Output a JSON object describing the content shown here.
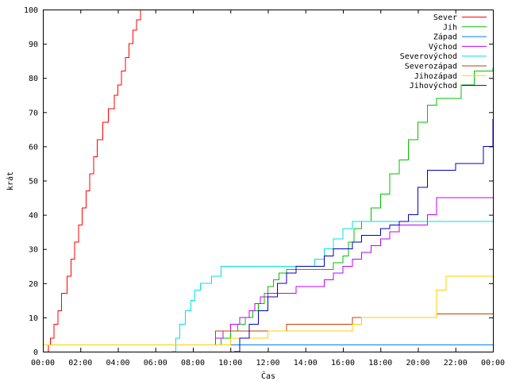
{
  "chart_data": {
    "type": "line",
    "title": "",
    "xlabel": "Čas",
    "ylabel": "krát",
    "xlim": [
      0,
      24
    ],
    "ylim": [
      0,
      100
    ],
    "xticks": [
      {
        "value": 0,
        "label": "00:00"
      },
      {
        "value": 2,
        "label": "02:00"
      },
      {
        "value": 4,
        "label": "04:00"
      },
      {
        "value": 6,
        "label": "06:00"
      },
      {
        "value": 8,
        "label": "08:00"
      },
      {
        "value": 10,
        "label": "10:00"
      },
      {
        "value": 12,
        "label": "12:00"
      },
      {
        "value": 14,
        "label": "14:00"
      },
      {
        "value": 16,
        "label": "16:00"
      },
      {
        "value": 18,
        "label": "18:00"
      },
      {
        "value": 20,
        "label": "20:00"
      },
      {
        "value": 22,
        "label": "22:00"
      },
      {
        "value": 24,
        "label": "00:00"
      }
    ],
    "yticks": [
      {
        "value": 0,
        "label": "0"
      },
      {
        "value": 10,
        "label": "10"
      },
      {
        "value": 20,
        "label": "20"
      },
      {
        "value": 30,
        "label": "30"
      },
      {
        "value": 40,
        "label": "40"
      },
      {
        "value": 50,
        "label": "50"
      },
      {
        "value": 60,
        "label": "60"
      },
      {
        "value": 70,
        "label": "70"
      },
      {
        "value": 80,
        "label": "80"
      },
      {
        "value": 90,
        "label": "90"
      },
      {
        "value": 100,
        "label": "100"
      }
    ],
    "grid": false,
    "legend_position": "top-right",
    "series": [
      {
        "name": "Sever",
        "color": "#ff0000",
        "points": [
          [
            0.25,
            0
          ],
          [
            0.3,
            2
          ],
          [
            0.4,
            4
          ],
          [
            0.6,
            8
          ],
          [
            0.8,
            12
          ],
          [
            1.0,
            17
          ],
          [
            1.3,
            22
          ],
          [
            1.5,
            27
          ],
          [
            1.7,
            32
          ],
          [
            1.9,
            37
          ],
          [
            2.1,
            42
          ],
          [
            2.3,
            47
          ],
          [
            2.5,
            52
          ],
          [
            2.7,
            57
          ],
          [
            2.9,
            62
          ],
          [
            3.2,
            67
          ],
          [
            3.5,
            71
          ],
          [
            3.8,
            75
          ],
          [
            4.0,
            78
          ],
          [
            4.2,
            82
          ],
          [
            4.4,
            86
          ],
          [
            4.6,
            90
          ],
          [
            4.8,
            94
          ],
          [
            5.0,
            97
          ],
          [
            5.2,
            100
          ]
        ]
      },
      {
        "name": "Jih",
        "color": "#00c000",
        "points": [
          [
            0,
            2
          ],
          [
            9.2,
            2
          ],
          [
            9.5,
            4
          ],
          [
            10.0,
            6
          ],
          [
            10.4,
            8
          ],
          [
            10.8,
            10
          ],
          [
            11.2,
            12
          ],
          [
            11.5,
            14
          ],
          [
            11.8,
            17
          ],
          [
            12.0,
            19
          ],
          [
            12.3,
            21
          ],
          [
            12.6,
            23
          ],
          [
            13.0,
            24
          ],
          [
            15.0,
            24
          ],
          [
            15.5,
            26
          ],
          [
            16.0,
            28
          ],
          [
            16.3,
            32
          ],
          [
            16.6,
            36
          ],
          [
            17.0,
            38
          ],
          [
            17.5,
            42
          ],
          [
            18.0,
            46
          ],
          [
            18.5,
            52
          ],
          [
            19.0,
            56
          ],
          [
            19.5,
            62
          ],
          [
            20.0,
            67
          ],
          [
            20.5,
            72
          ],
          [
            21.0,
            74
          ],
          [
            22.0,
            74
          ],
          [
            22.3,
            78
          ],
          [
            23.0,
            82
          ],
          [
            24.0,
            83
          ]
        ]
      },
      {
        "name": "Západ",
        "color": "#0080ff",
        "points": [
          [
            0,
            2
          ],
          [
            24,
            2
          ]
        ]
      },
      {
        "name": "Východ",
        "color": "#c000ff",
        "points": [
          [
            0,
            2
          ],
          [
            8.8,
            2
          ],
          [
            9.2,
            4
          ],
          [
            9.6,
            6
          ],
          [
            10.0,
            8
          ],
          [
            10.5,
            10
          ],
          [
            11.0,
            12
          ],
          [
            11.3,
            14
          ],
          [
            11.6,
            16
          ],
          [
            12.0,
            17
          ],
          [
            13.0,
            17
          ],
          [
            13.5,
            19
          ],
          [
            14.0,
            19
          ],
          [
            15.0,
            21
          ],
          [
            15.5,
            23
          ],
          [
            16.0,
            25
          ],
          [
            16.5,
            27
          ],
          [
            17.0,
            29
          ],
          [
            17.5,
            31
          ],
          [
            18.0,
            33
          ],
          [
            18.5,
            35
          ],
          [
            19.0,
            37
          ],
          [
            20.0,
            37
          ],
          [
            20.5,
            40
          ],
          [
            21.0,
            45
          ],
          [
            24.0,
            45
          ]
        ]
      },
      {
        "name": "Severovýchod",
        "color": "#00e0e0",
        "points": [
          [
            6.9,
            0
          ],
          [
            7.1,
            4
          ],
          [
            7.3,
            8
          ],
          [
            7.6,
            12
          ],
          [
            7.9,
            15
          ],
          [
            8.1,
            18
          ],
          [
            8.4,
            20
          ],
          [
            9.0,
            22
          ],
          [
            9.5,
            25
          ],
          [
            14.0,
            25
          ],
          [
            14.5,
            27
          ],
          [
            15.0,
            30
          ],
          [
            15.5,
            33
          ],
          [
            16.0,
            36
          ],
          [
            16.5,
            38
          ],
          [
            24.0,
            38
          ]
        ]
      },
      {
        "name": "Severozápad",
        "color": "#c04000",
        "points": [
          [
            0,
            2
          ],
          [
            8.8,
            2
          ],
          [
            9.2,
            6
          ],
          [
            12.0,
            6
          ],
          [
            13.0,
            8
          ],
          [
            16.0,
            8
          ],
          [
            16.5,
            10
          ],
          [
            20.5,
            10
          ],
          [
            21.0,
            11
          ],
          [
            24.0,
            11
          ]
        ]
      },
      {
        "name": "Jihozápad",
        "color": "#ffd000",
        "points": [
          [
            0,
            2
          ],
          [
            9.5,
            2
          ],
          [
            10.0,
            4
          ],
          [
            11.0,
            4
          ],
          [
            12.0,
            6
          ],
          [
            13.5,
            6
          ],
          [
            16.0,
            6
          ],
          [
            16.5,
            8
          ],
          [
            17.0,
            10
          ],
          [
            20.5,
            10
          ],
          [
            21.0,
            18
          ],
          [
            21.5,
            22
          ],
          [
            24.0,
            22
          ]
        ]
      },
      {
        "name": "Jihovýchod",
        "color": "#0000c0",
        "points": [
          [
            10.2,
            0
          ],
          [
            10.5,
            4
          ],
          [
            11.0,
            8
          ],
          [
            11.5,
            12
          ],
          [
            12.0,
            16
          ],
          [
            12.5,
            20
          ],
          [
            13.0,
            23
          ],
          [
            13.5,
            25
          ],
          [
            14.5,
            25
          ],
          [
            15.0,
            28
          ],
          [
            15.5,
            30
          ],
          [
            16.5,
            32
          ],
          [
            17.0,
            34
          ],
          [
            18.0,
            36
          ],
          [
            18.5,
            37
          ],
          [
            19.0,
            38
          ],
          [
            19.5,
            40
          ],
          [
            20.0,
            48
          ],
          [
            20.5,
            53
          ],
          [
            21.5,
            53
          ],
          [
            22.0,
            55
          ],
          [
            23.0,
            55
          ],
          [
            23.5,
            60
          ],
          [
            24.0,
            68
          ]
        ]
      }
    ]
  }
}
